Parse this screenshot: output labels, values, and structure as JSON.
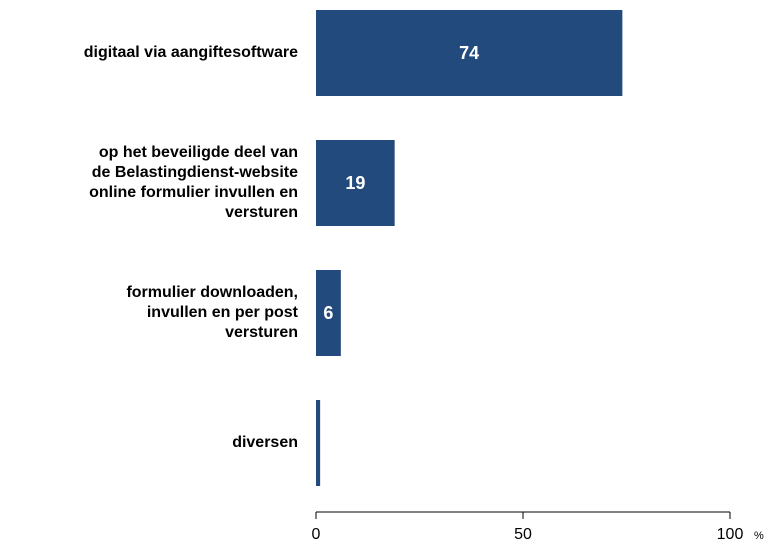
{
  "chart_data": {
    "type": "bar",
    "orientation": "horizontal",
    "categories": [
      "digitaal via aangiftesoftware",
      "op het beveiligde deel van\nde Belastingdienst-website\nonline formulier invullen en\nversturen",
      "formulier downloaden,\ninvullen en per post\nversturen",
      "diversen"
    ],
    "values": [
      74,
      19,
      6,
      1
    ],
    "value_labels": [
      "74",
      "19",
      "6",
      null
    ],
    "color": "#234a7c",
    "xlim": [
      0,
      100
    ],
    "xticks": [
      0,
      50,
      100
    ],
    "x_unit": "%",
    "grid": false
  }
}
